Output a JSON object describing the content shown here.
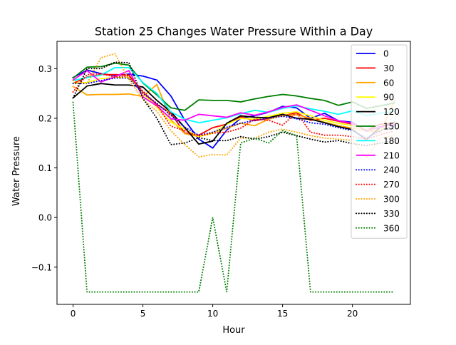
{
  "chart_data": {
    "type": "line",
    "title": "Station 25 Changes Water Pressure Within a Day",
    "xlabel": "Hour",
    "ylabel": "Water Pressure",
    "xlim": [
      -1.15,
      24.15
    ],
    "ylim": [
      -0.175,
      0.355
    ],
    "xticks": [
      0,
      5,
      10,
      15,
      20
    ],
    "xtick_labels": [
      "0",
      "5",
      "10",
      "15",
      "20"
    ],
    "yticks": [
      -0.1,
      0.0,
      0.1,
      0.2,
      0.3
    ],
    "ytick_labels": [
      "−0.1",
      "0.0",
      "0.1",
      "0.2",
      "0.3"
    ],
    "grid": false,
    "legend_position": "top-right",
    "x": [
      0,
      1,
      2,
      3,
      4,
      5,
      6,
      7,
      8,
      9,
      10,
      11,
      12,
      13,
      14,
      15,
      16,
      17,
      18,
      19,
      20,
      21,
      22,
      23
    ],
    "series": [
      {
        "name": "0",
        "color": "#0000ff",
        "dash": "solid",
        "values": [
          0.282,
          0.297,
          0.29,
          0.286,
          0.289,
          0.285,
          0.277,
          0.245,
          0.196,
          0.158,
          0.14,
          0.176,
          0.2,
          0.205,
          0.212,
          0.224,
          0.221,
          0.2,
          0.21,
          0.195,
          0.192,
          0.174,
          0.183,
          0.188
        ]
      },
      {
        "name": "30",
        "color": "#ff0000",
        "dash": "solid",
        "values": [
          0.27,
          0.283,
          0.288,
          0.288,
          0.287,
          0.252,
          0.228,
          0.21,
          0.17,
          0.166,
          0.181,
          0.188,
          0.203,
          0.195,
          0.2,
          0.205,
          0.211,
          0.196,
          0.2,
          0.194,
          0.188,
          0.176,
          0.188,
          0.19
        ]
      },
      {
        "name": "60",
        "color": "#ffa500",
        "dash": "solid",
        "values": [
          0.264,
          0.247,
          0.248,
          0.248,
          0.249,
          0.244,
          0.268,
          0.197,
          0.169,
          0.163,
          0.171,
          0.18,
          0.19,
          0.185,
          0.198,
          0.206,
          0.207,
          0.2,
          0.192,
          0.185,
          0.18,
          0.175,
          0.172,
          0.235
        ]
      },
      {
        "name": "90",
        "color": "#ffff00",
        "dash": "solid",
        "values": [
          0.27,
          0.272,
          0.28,
          0.282,
          0.282,
          0.25,
          0.222,
          0.192,
          0.178,
          0.163,
          0.17,
          0.188,
          0.2,
          0.198,
          0.204,
          0.21,
          0.213,
          0.205,
          0.196,
          0.19,
          0.185,
          0.178,
          0.176,
          0.19
        ]
      },
      {
        "name": "120",
        "color": "#000000",
        "dash": "solid",
        "values": [
          0.241,
          0.265,
          0.27,
          0.267,
          0.267,
          0.263,
          0.236,
          0.213,
          0.181,
          0.148,
          0.154,
          0.19,
          0.205,
          0.202,
          0.201,
          0.208,
          0.2,
          0.198,
          0.191,
          0.183,
          0.177,
          0.157,
          0.182,
          0.192
        ]
      },
      {
        "name": "150",
        "color": "#008000",
        "dash": "solid",
        "values": [
          0.281,
          0.303,
          0.304,
          0.311,
          0.307,
          0.271,
          0.247,
          0.221,
          0.216,
          0.237,
          0.236,
          0.236,
          0.233,
          0.239,
          0.244,
          0.248,
          0.245,
          0.24,
          0.236,
          0.226,
          0.233,
          0.22,
          0.225,
          0.231
        ]
      },
      {
        "name": "180",
        "color": "#00ffff",
        "dash": "solid",
        "values": [
          0.276,
          0.282,
          0.287,
          0.302,
          0.302,
          0.272,
          0.25,
          0.213,
          0.198,
          0.191,
          0.196,
          0.201,
          0.209,
          0.216,
          0.212,
          0.22,
          0.225,
          0.219,
          0.214,
          0.208,
          0.215,
          0.205,
          0.21,
          0.214
        ]
      },
      {
        "name": "210",
        "color": "#ff00ff",
        "dash": "solid",
        "values": [
          0.277,
          0.296,
          0.273,
          0.284,
          0.296,
          0.243,
          0.225,
          0.199,
          0.196,
          0.208,
          0.205,
          0.202,
          0.211,
          0.206,
          0.213,
          0.222,
          0.227,
          0.216,
          0.205,
          0.195,
          0.19,
          0.175,
          0.182,
          0.188
        ]
      },
      {
        "name": "240",
        "color": "#0000ff",
        "dash": "dotted",
        "values": [
          0.27,
          0.27,
          0.276,
          0.281,
          0.281,
          0.25,
          0.23,
          0.206,
          0.182,
          0.166,
          0.172,
          0.182,
          0.19,
          0.196,
          0.2,
          0.204,
          0.199,
          0.191,
          0.188,
          0.181,
          0.175,
          0.16,
          0.175,
          0.185
        ]
      },
      {
        "name": "270",
        "color": "#ff0000",
        "dash": "dotted",
        "values": [
          0.253,
          0.288,
          0.29,
          0.283,
          0.285,
          0.255,
          0.227,
          0.184,
          0.175,
          0.164,
          0.17,
          0.172,
          0.18,
          0.198,
          0.196,
          0.186,
          0.212,
          0.172,
          0.166,
          0.166,
          0.163,
          0.158,
          0.167,
          0.174
        ]
      },
      {
        "name": "300",
        "color": "#ffa500",
        "dash": "dotted",
        "values": [
          0.276,
          0.27,
          0.322,
          0.33,
          0.278,
          0.238,
          0.214,
          0.175,
          0.147,
          0.122,
          0.127,
          0.126,
          0.16,
          0.16,
          0.172,
          0.178,
          0.172,
          0.165,
          0.16,
          0.158,
          0.155,
          0.121,
          0.16,
          0.165
        ]
      },
      {
        "name": "330",
        "color": "#000000",
        "dash": "dotted",
        "values": [
          0.241,
          0.3,
          0.3,
          0.313,
          0.312,
          0.24,
          0.2,
          0.147,
          0.15,
          0.161,
          0.155,
          0.155,
          0.163,
          0.158,
          0.163,
          0.172,
          0.165,
          0.158,
          0.152,
          0.155,
          0.149,
          0.145,
          0.15,
          0.155
        ]
      },
      {
        "name": "360",
        "color": "#008000",
        "dash": "dotted",
        "values": [
          0.232,
          -0.15,
          -0.15,
          -0.15,
          -0.15,
          -0.15,
          -0.15,
          -0.15,
          -0.15,
          -0.15,
          0.0,
          -0.15,
          0.15,
          0.16,
          0.15,
          0.175,
          0.165,
          -0.15,
          -0.15,
          -0.15,
          -0.15,
          -0.15,
          -0.15,
          -0.15
        ]
      }
    ]
  }
}
